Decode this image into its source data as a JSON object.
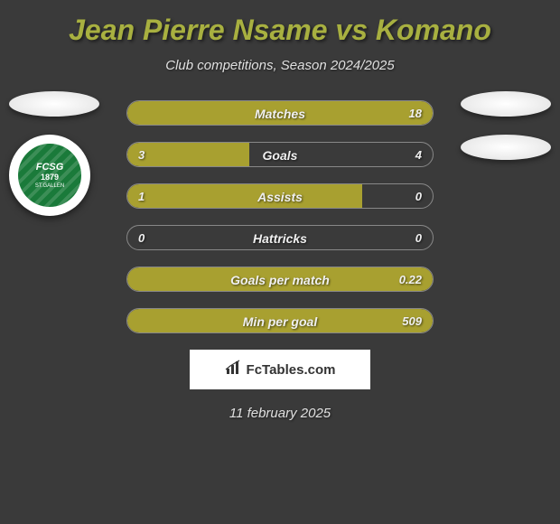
{
  "title": "Jean Pierre Nsame vs Komano",
  "subtitle": "Club competitions, Season 2024/2025",
  "date": "11 february 2025",
  "watermark": {
    "text": "FcTables.com",
    "icon": "📊"
  },
  "club_logo": {
    "text_top": "FCSG",
    "year": "1879",
    "text_bottom": "ST.GALLEN",
    "bg_color": "#1a7a3a",
    "border_color": "#ffffff"
  },
  "colors": {
    "background": "#3a3a3a",
    "title_color": "#a8b040",
    "bar_fill": "#a8a030",
    "bar_border": "#888888",
    "text_light": "#e0e0e0",
    "stat_text": "#f0f0f0"
  },
  "stats": [
    {
      "label": "Matches",
      "left_value": "",
      "right_value": "18",
      "left_pct": 0,
      "right_pct": 100,
      "fill_type": "full"
    },
    {
      "label": "Goals",
      "left_value": "3",
      "right_value": "4",
      "left_pct": 40,
      "right_pct": 0,
      "fill_type": "left"
    },
    {
      "label": "Assists",
      "left_value": "1",
      "right_value": "0",
      "left_pct": 77,
      "right_pct": 0,
      "fill_type": "left"
    },
    {
      "label": "Hattricks",
      "left_value": "0",
      "right_value": "0",
      "left_pct": 0,
      "right_pct": 0,
      "fill_type": "none"
    },
    {
      "label": "Goals per match",
      "left_value": "",
      "right_value": "0.22",
      "left_pct": 0,
      "right_pct": 100,
      "fill_type": "full"
    },
    {
      "label": "Min per goal",
      "left_value": "",
      "right_value": "509",
      "left_pct": 0,
      "right_pct": 100,
      "fill_type": "full"
    }
  ]
}
